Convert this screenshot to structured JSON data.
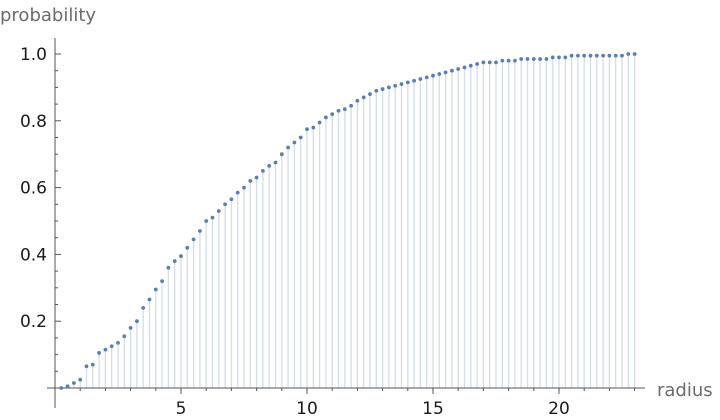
{
  "chart_data": {
    "type": "scatter",
    "style": "points-with-drop-lines",
    "xlabel": "radius",
    "ylabel": "probability",
    "xlim": [
      0,
      23.2
    ],
    "ylim": [
      0,
      1.0
    ],
    "x_ticks": [
      5,
      10,
      15,
      20
    ],
    "y_ticks": [
      0.2,
      0.4,
      0.6,
      0.8,
      1.0
    ],
    "x_ticks_labels": [
      "5",
      "10",
      "15",
      "20"
    ],
    "y_ticks_labels": [
      "0.2",
      "0.4",
      "0.6",
      "0.8",
      "1.0"
    ],
    "grid": false,
    "point_color": "#5b7fb4",
    "drop_line_color": "#d3dde9",
    "series": [
      {
        "x": [
          0.25,
          0.5,
          0.75,
          1.0,
          1.25,
          1.5,
          1.75,
          2.0,
          2.25,
          2.5,
          2.75,
          3.0,
          3.25,
          3.5,
          3.75,
          4.0,
          4.25,
          4.5,
          4.75,
          5.0,
          5.25,
          5.5,
          5.75,
          6.0,
          6.25,
          6.5,
          6.75,
          7.0,
          7.25,
          7.5,
          7.75,
          8.0,
          8.25,
          8.5,
          8.75,
          9.0,
          9.25,
          9.5,
          9.75,
          10.0,
          10.25,
          10.5,
          10.75,
          11.0,
          11.25,
          11.5,
          11.75,
          12.0,
          12.25,
          12.5,
          12.75,
          13.0,
          13.25,
          13.5,
          13.75,
          14.0,
          14.25,
          14.5,
          14.75,
          15.0,
          15.25,
          15.5,
          15.75,
          16.0,
          16.25,
          16.5,
          16.75,
          17.0,
          17.25,
          17.5,
          17.75,
          18.0,
          18.25,
          18.5,
          18.75,
          19.0,
          19.25,
          19.5,
          19.75,
          20.0,
          20.25,
          20.5,
          20.75,
          21.0,
          21.25,
          21.5,
          21.75,
          22.0,
          22.25,
          22.5,
          22.75,
          23.0
        ],
        "y": [
          0.0,
          0.005,
          0.015,
          0.025,
          0.065,
          0.07,
          0.105,
          0.115,
          0.125,
          0.135,
          0.155,
          0.18,
          0.2,
          0.24,
          0.265,
          0.295,
          0.32,
          0.36,
          0.38,
          0.395,
          0.42,
          0.445,
          0.47,
          0.5,
          0.51,
          0.53,
          0.55,
          0.565,
          0.585,
          0.6,
          0.62,
          0.63,
          0.65,
          0.665,
          0.675,
          0.7,
          0.72,
          0.735,
          0.75,
          0.775,
          0.78,
          0.795,
          0.81,
          0.82,
          0.83,
          0.835,
          0.845,
          0.86,
          0.87,
          0.88,
          0.89,
          0.895,
          0.9,
          0.905,
          0.91,
          0.915,
          0.92,
          0.925,
          0.93,
          0.935,
          0.94,
          0.945,
          0.95,
          0.955,
          0.96,
          0.965,
          0.97,
          0.975,
          0.975,
          0.975,
          0.98,
          0.98,
          0.98,
          0.985,
          0.985,
          0.985,
          0.985,
          0.985,
          0.99,
          0.99,
          0.99,
          0.995,
          0.995,
          0.995,
          0.995,
          0.995,
          0.995,
          0.995,
          0.995,
          0.995,
          1.0,
          1.0
        ]
      }
    ]
  }
}
